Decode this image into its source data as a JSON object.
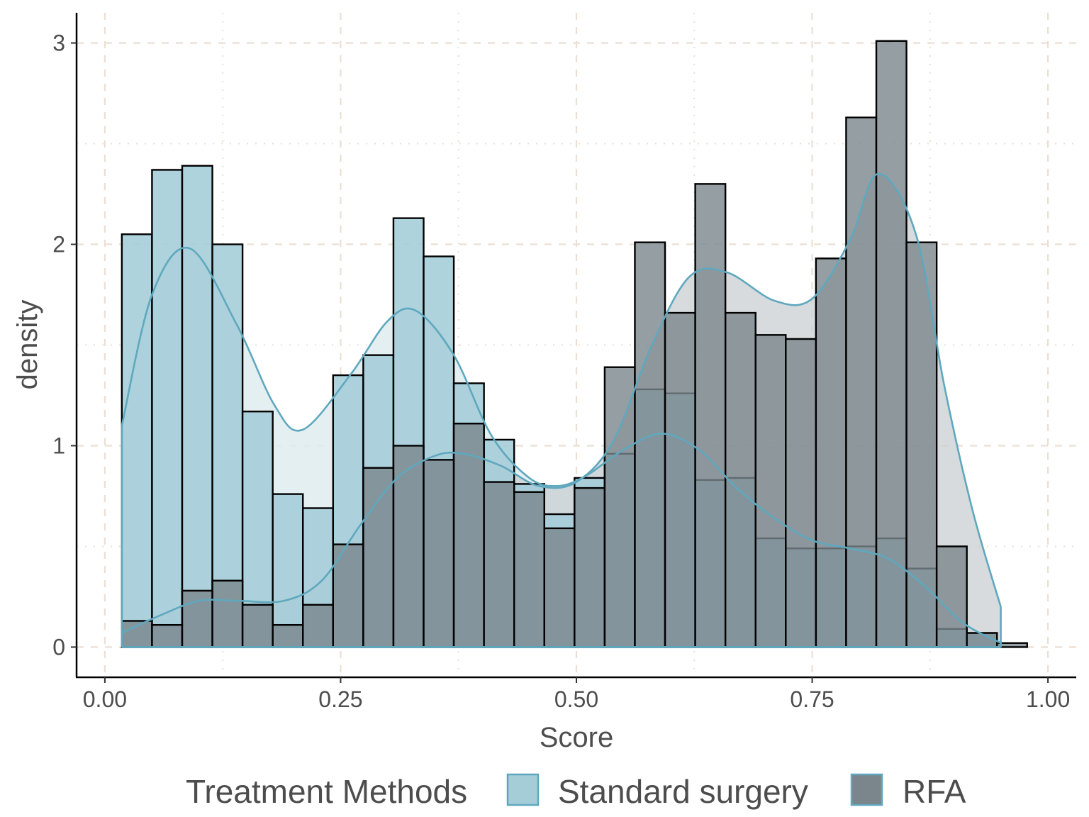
{
  "chart_data": {
    "type": "histogram",
    "xlabel": "Score",
    "ylabel": "density",
    "xlim": [
      -0.03,
      1.03
    ],
    "ylim": [
      -0.15,
      3.15
    ],
    "x_ticks": [
      0,
      0.25,
      0.5,
      0.75,
      1
    ],
    "x_tick_labels": [
      "0.00",
      "0.25",
      "0.50",
      "0.75",
      "1.00"
    ],
    "y_ticks": [
      0,
      1,
      2,
      3
    ],
    "y_tick_labels": [
      "0",
      "1",
      "2",
      "3"
    ],
    "grid": true,
    "legend": {
      "title": "Treatment Methods",
      "position": "bottom",
      "entries": [
        "Standard surgery",
        "RFA"
      ]
    },
    "bin_edges": [
      0.018,
      0.05,
      0.082,
      0.114,
      0.146,
      0.178,
      0.21,
      0.242,
      0.274,
      0.306,
      0.338,
      0.37,
      0.402,
      0.434,
      0.466,
      0.498,
      0.53,
      0.562,
      0.594,
      0.626,
      0.658,
      0.69,
      0.722,
      0.754,
      0.786,
      0.818,
      0.85,
      0.882,
      0.914,
      0.946,
      0.978
    ],
    "series": [
      {
        "name": "Standard surgery",
        "fill": "#a4cdd8",
        "line_color": "#5fa8be",
        "values": [
          2.05,
          2.37,
          2.39,
          2.0,
          1.17,
          0.76,
          0.69,
          1.35,
          1.45,
          2.13,
          1.94,
          1.31,
          1.03,
          0.81,
          0.66,
          0.84,
          0.96,
          1.28,
          1.26,
          0.83,
          0.84,
          0.54,
          0.49,
          0.49,
          0.5,
          0.54,
          0.39,
          0.09,
          0.07,
          0.0
        ],
        "density_x": [
          0.018,
          0.05,
          0.09,
          0.14,
          0.18,
          0.21,
          0.26,
          0.3,
          0.33,
          0.37,
          0.41,
          0.45,
          0.48,
          0.51,
          0.55,
          0.59,
          0.63,
          0.67,
          0.71,
          0.75,
          0.79,
          0.83,
          0.87,
          0.91,
          0.95
        ],
        "density_y": [
          1.1,
          1.75,
          1.98,
          1.6,
          1.2,
          1.08,
          1.35,
          1.62,
          1.67,
          1.45,
          1.05,
          0.84,
          0.8,
          0.85,
          0.98,
          1.06,
          0.98,
          0.79,
          0.64,
          0.53,
          0.49,
          0.44,
          0.3,
          0.12,
          0.02
        ]
      },
      {
        "name": "RFA",
        "fill": "#7a868c",
        "line_color": "#5fa8be",
        "values": [
          0.13,
          0.11,
          0.28,
          0.33,
          0.21,
          0.11,
          0.21,
          0.51,
          0.89,
          1.0,
          0.93,
          1.11,
          0.82,
          0.77,
          0.59,
          0.79,
          1.39,
          2.01,
          1.66,
          2.3,
          1.66,
          1.55,
          1.53,
          1.93,
          2.63,
          3.01,
          2.01,
          0.5,
          0.07,
          0.02
        ],
        "density_x": [
          0.018,
          0.06,
          0.1,
          0.14,
          0.19,
          0.23,
          0.27,
          0.31,
          0.35,
          0.38,
          0.42,
          0.46,
          0.5,
          0.54,
          0.58,
          0.62,
          0.66,
          0.71,
          0.75,
          0.79,
          0.82,
          0.86,
          0.89,
          0.92,
          0.95
        ],
        "density_y": [
          0.07,
          0.16,
          0.23,
          0.23,
          0.23,
          0.33,
          0.6,
          0.84,
          0.95,
          0.96,
          0.9,
          0.8,
          0.82,
          1.03,
          1.5,
          1.84,
          1.86,
          1.72,
          1.73,
          2.02,
          2.35,
          2.05,
          1.3,
          0.68,
          0.2
        ]
      }
    ]
  }
}
